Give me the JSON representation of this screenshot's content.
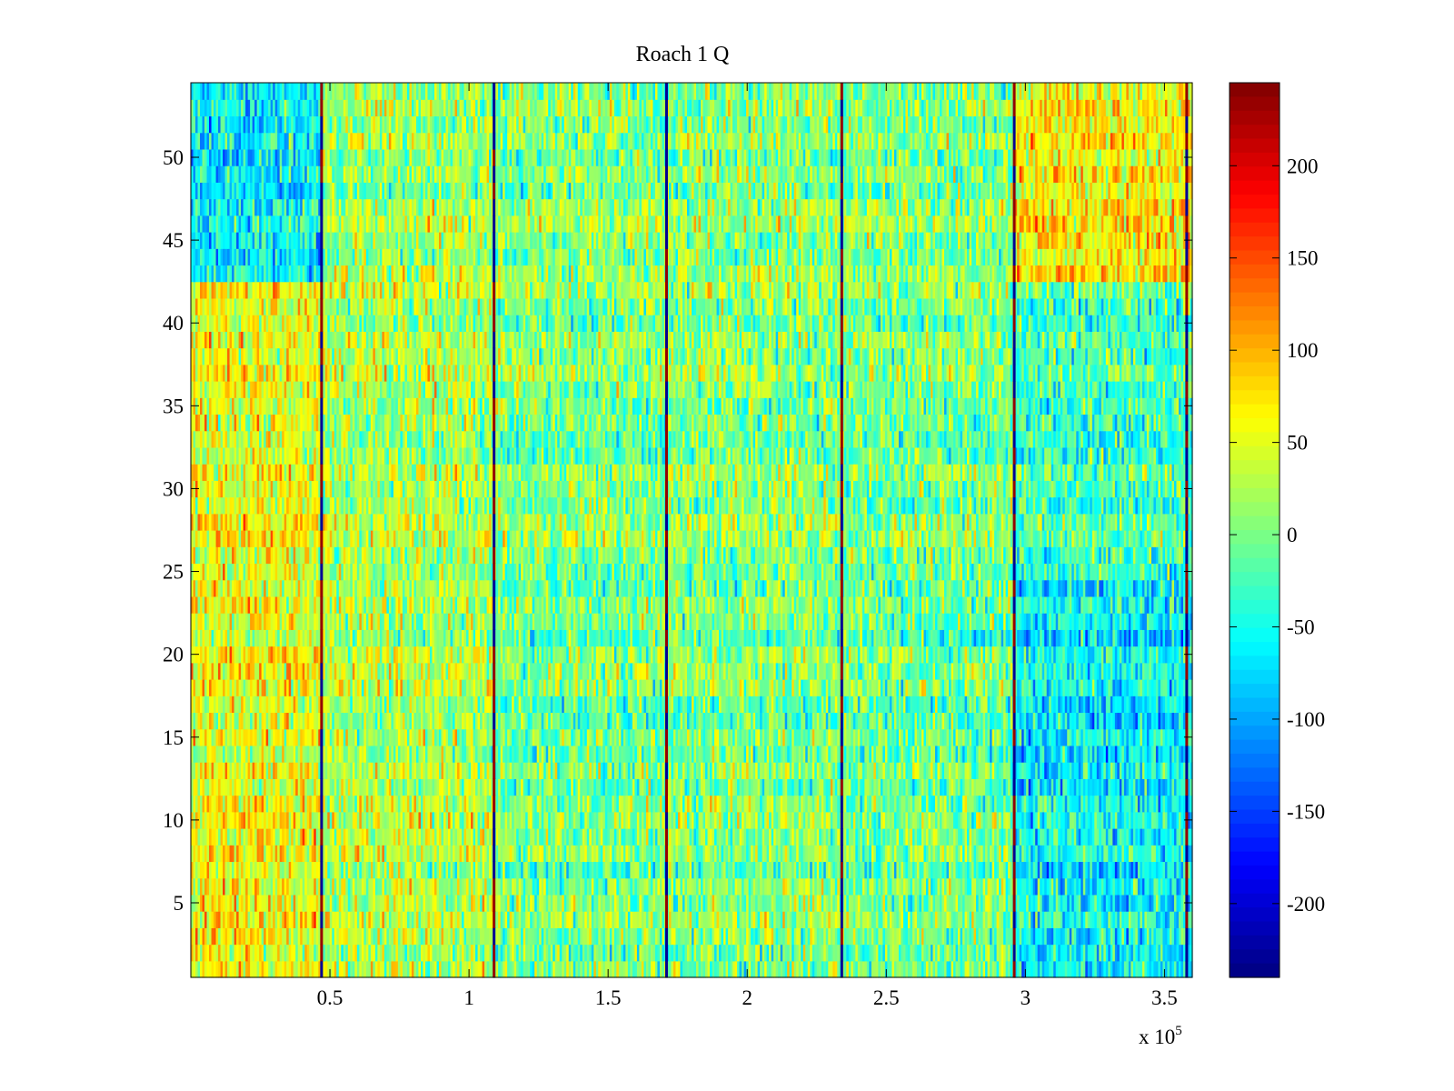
{
  "chart_data": {
    "type": "heatmap",
    "title": "Roach 1 Q",
    "xlabel": "",
    "ylabel": "",
    "x_exponent_label": "x 10",
    "x_exponent_power": "5",
    "xlim": [
      0,
      3.6
    ],
    "ylim": [
      0.5,
      54.5
    ],
    "xticks": [
      0.5,
      1,
      1.5,
      2,
      2.5,
      3,
      3.5
    ],
    "xtick_labels": [
      "0.5",
      "1",
      "1.5",
      "2",
      "2.5",
      "3",
      "3.5"
    ],
    "yticks": [
      5,
      10,
      15,
      20,
      25,
      30,
      35,
      40,
      45,
      50
    ],
    "ytick_labels": [
      "5",
      "10",
      "15",
      "20",
      "25",
      "30",
      "35",
      "40",
      "45",
      "50"
    ],
    "rows": 54,
    "colormap": "jet",
    "color_limits": [
      -240,
      245
    ],
    "colorbar_ticks": [
      -200,
      -150,
      -100,
      -50,
      0,
      50,
      100,
      150,
      200
    ],
    "colorbar_tick_labels": [
      "-200",
      "-150",
      "-100",
      "-50",
      "0",
      "50",
      "100",
      "150",
      "200"
    ],
    "vertical_spike_columns_x1e5": [
      0.47,
      1.09,
      1.71,
      2.34,
      2.96,
      3.58
    ],
    "segments_x1e5": [
      {
        "start": 0.0,
        "end": 0.47,
        "mean_rows_1_24": 55,
        "mean_rows_25_42": 55,
        "mean_rows_43_54": -60
      },
      {
        "start": 0.47,
        "end": 1.09,
        "mean_rows_1_24": 25,
        "mean_rows_25_42": 25,
        "mean_rows_43_54": 15
      },
      {
        "start": 1.09,
        "end": 1.71,
        "mean_rows_1_24": -5,
        "mean_rows_25_42": 0,
        "mean_rows_43_54": 5
      },
      {
        "start": 1.71,
        "end": 2.34,
        "mean_rows_1_24": 0,
        "mean_rows_25_42": 5,
        "mean_rows_43_54": 10
      },
      {
        "start": 2.34,
        "end": 2.96,
        "mean_rows_1_24": -10,
        "mean_rows_25_42": 0,
        "mean_rows_43_54": 5
      },
      {
        "start": 2.96,
        "end": 3.58,
        "mean_rows_1_24": -60,
        "mean_rows_25_42": -25,
        "mean_rows_43_54": 70
      }
    ]
  }
}
